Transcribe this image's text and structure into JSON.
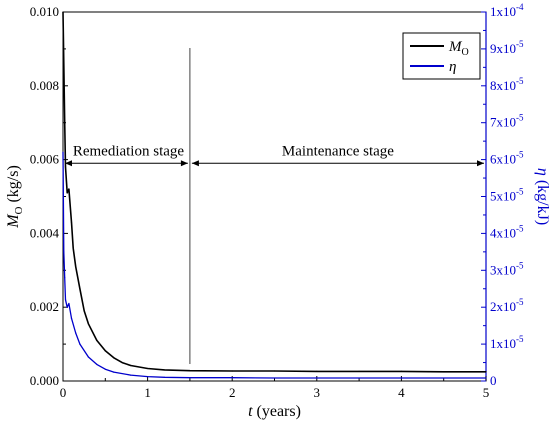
{
  "colors": {
    "mo_series": "#000000",
    "eta_series": "#0000cc",
    "right_axis": "#0000cc",
    "frame": "#000000"
  },
  "chart_data": {
    "type": "line",
    "x_axis": {
      "label_italic": "t",
      "label_rest": " (years)",
      "range": [
        0,
        5
      ],
      "ticks": [
        "0",
        "1",
        "2",
        "3",
        "4",
        "5"
      ]
    },
    "y_left": {
      "label_main": "M",
      "label_sub": "O",
      "label_rest": " (kg/s)",
      "range": [
        0,
        0.01
      ],
      "ticks": [
        "0.000",
        "0.002",
        "0.004",
        "0.006",
        "0.008",
        "0.010"
      ]
    },
    "y_right": {
      "label_italic": "η",
      "label_rest": " (kg/kJ)",
      "range": [
        0,
        0.0001
      ],
      "ticks": [
        {
          "base": "0",
          "exp": ""
        },
        {
          "base": "1x10",
          "exp": "-5"
        },
        {
          "base": "2x10",
          "exp": "-5"
        },
        {
          "base": "3x10",
          "exp": "-5"
        },
        {
          "base": "4x10",
          "exp": "-5"
        },
        {
          "base": "5x10",
          "exp": "-5"
        },
        {
          "base": "6x10",
          "exp": "-5"
        },
        {
          "base": "7x10",
          "exp": "-5"
        },
        {
          "base": "8x10",
          "exp": "-5"
        },
        {
          "base": "9x10",
          "exp": "-5"
        },
        {
          "base": "1x10",
          "exp": "-4"
        }
      ]
    },
    "legend": {
      "position": "top-right",
      "items": [
        {
          "main": "M",
          "sub": "O",
          "color": "#000000"
        },
        {
          "main": "η",
          "sub": "",
          "color": "#0000cc"
        }
      ]
    },
    "annotations": {
      "remediation": "Remediation stage",
      "maintenance": "Maintenance stage",
      "divider_x": 1.5,
      "arrow_y": 0.0059
    },
    "series": [
      {
        "name": "MO",
        "axis": "left",
        "color": "#000000",
        "x": [
          0,
          0.01,
          0.02,
          0.03,
          0.05,
          0.07,
          0.1,
          0.12,
          0.15,
          0.2,
          0.25,
          0.3,
          0.4,
          0.5,
          0.6,
          0.7,
          0.8,
          1.0,
          1.2,
          1.5,
          2.0,
          2.5,
          3.0,
          3.5,
          4.0,
          4.5,
          5.0
        ],
        "y": [
          0.01,
          0.0086,
          0.007,
          0.0058,
          0.0051,
          0.0052,
          0.0043,
          0.0036,
          0.0031,
          0.0025,
          0.0019,
          0.00155,
          0.0011,
          0.00082,
          0.00063,
          0.0005,
          0.00042,
          0.00034,
          0.0003,
          0.00028,
          0.00027,
          0.00027,
          0.00026,
          0.00026,
          0.00026,
          0.00025,
          0.00025
        ]
      },
      {
        "name": "η",
        "axis": "right",
        "color": "#0000cc",
        "x": [
          0,
          0.01,
          0.02,
          0.03,
          0.05,
          0.07,
          0.1,
          0.15,
          0.2,
          0.3,
          0.4,
          0.5,
          0.6,
          0.8,
          1.0,
          1.2,
          1.5,
          2.0,
          2.5,
          3.0,
          3.5,
          4.0,
          4.5,
          5.0
        ],
        "y": [
          6.2e-05,
          3.5e-05,
          2.8e-05,
          2.2e-05,
          2e-05,
          2.1e-05,
          1.7e-05,
          1.3e-05,
          1e-05,
          6.5e-06,
          4.5e-06,
          3.2e-06,
          2.4e-06,
          1.6e-06,
          1.2e-06,
          1e-06,
          9e-07,
          9e-07,
          8e-07,
          8e-07,
          8e-07,
          8e-07,
          8e-07,
          8e-07
        ]
      }
    ]
  }
}
